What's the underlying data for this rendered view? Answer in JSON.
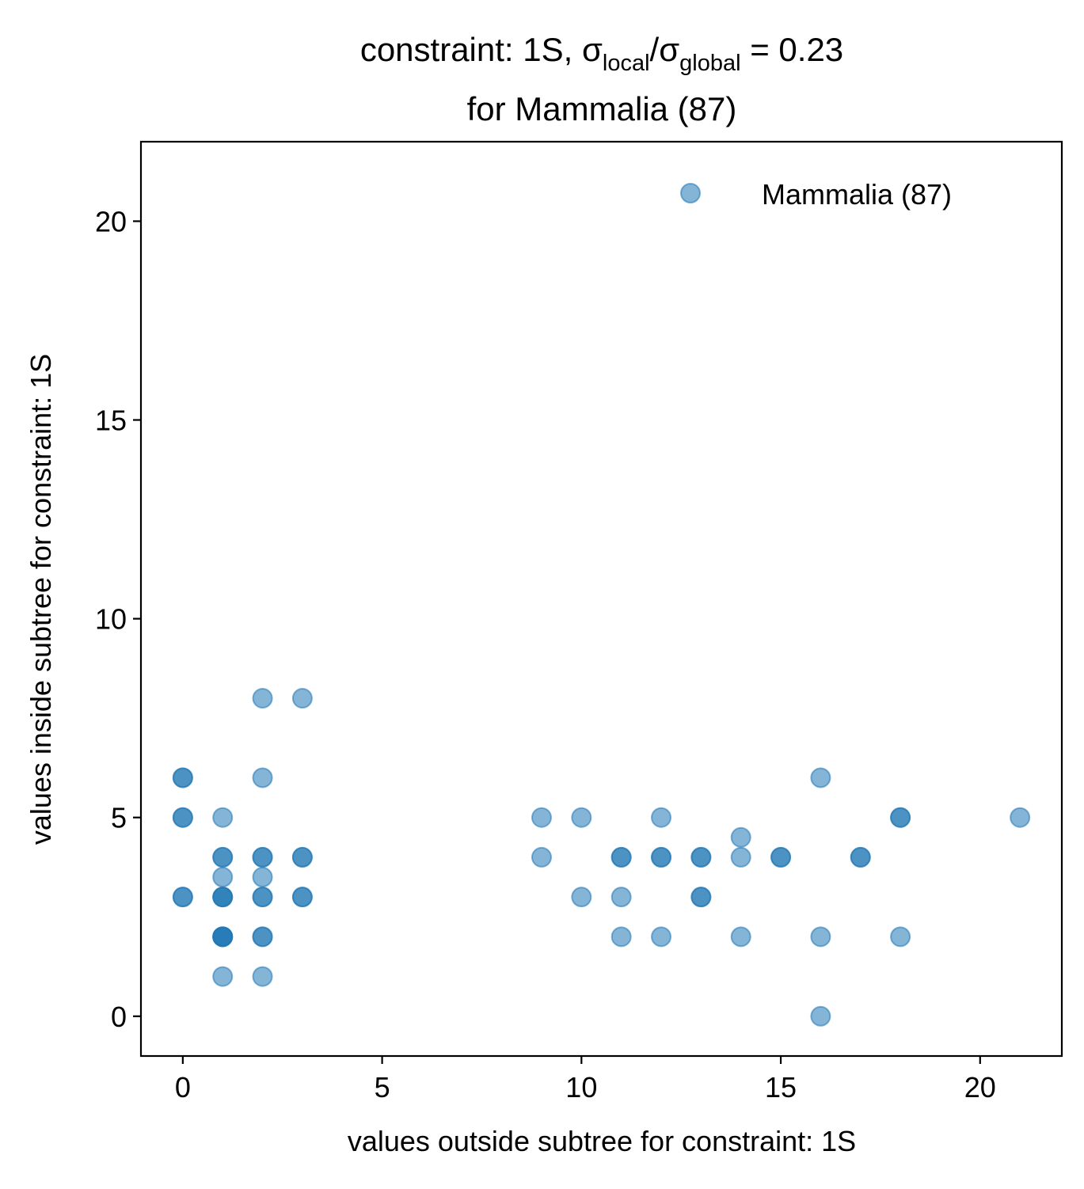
{
  "chart_data": {
    "type": "scatter",
    "title": {
      "line1_prefix": "constraint: 1S, σ",
      "sub1": "local",
      "slash": "/σ",
      "sub2": "global",
      "line1_suffix": " =  0.23",
      "line2": "for Mammalia (87)"
    },
    "xlabel": "values outside subtree for constraint: 1S",
    "ylabel": "values inside subtree for constraint: 1S",
    "xlim": [
      -1.05,
      22.05
    ],
    "ylim": [
      -1.0,
      22.0
    ],
    "xticks": [
      0,
      5,
      10,
      15,
      20
    ],
    "yticks": [
      0,
      5,
      10,
      15,
      20
    ],
    "grid": false,
    "legend_position": "top-right",
    "marker_color": "#1f77b4",
    "marker_alpha": 0.55,
    "series": [
      {
        "name": "Mammalia (87)",
        "points": [
          [
            0,
            6
          ],
          [
            0,
            6
          ],
          [
            0,
            5
          ],
          [
            0,
            5
          ],
          [
            0,
            3
          ],
          [
            0,
            3
          ],
          [
            1,
            5
          ],
          [
            1,
            4
          ],
          [
            1,
            4
          ],
          [
            1,
            3.5
          ],
          [
            1,
            3
          ],
          [
            1,
            3
          ],
          [
            1,
            3
          ],
          [
            1,
            2
          ],
          [
            1,
            2
          ],
          [
            1,
            2
          ],
          [
            1,
            2
          ],
          [
            1,
            1
          ],
          [
            2,
            8
          ],
          [
            2,
            6
          ],
          [
            2,
            4
          ],
          [
            2,
            4
          ],
          [
            2,
            3.5
          ],
          [
            2,
            3
          ],
          [
            2,
            3
          ],
          [
            2,
            2
          ],
          [
            2,
            2
          ],
          [
            2,
            1
          ],
          [
            3,
            8
          ],
          [
            3,
            4
          ],
          [
            3,
            4
          ],
          [
            3,
            3
          ],
          [
            3,
            3
          ],
          [
            9,
            5
          ],
          [
            9,
            4
          ],
          [
            10,
            5
          ],
          [
            10,
            3
          ],
          [
            11,
            4
          ],
          [
            11,
            4
          ],
          [
            11,
            3
          ],
          [
            11,
            2
          ],
          [
            12,
            5
          ],
          [
            12,
            4
          ],
          [
            12,
            4
          ],
          [
            12,
            2
          ],
          [
            13,
            4
          ],
          [
            13,
            4
          ],
          [
            13,
            3
          ],
          [
            13,
            3
          ],
          [
            14,
            4.5
          ],
          [
            14,
            4
          ],
          [
            14,
            2
          ],
          [
            15,
            4
          ],
          [
            15,
            4
          ],
          [
            16,
            6
          ],
          [
            16,
            2
          ],
          [
            16,
            0
          ],
          [
            17,
            4
          ],
          [
            17,
            4
          ],
          [
            18,
            5
          ],
          [
            18,
            5
          ],
          [
            18,
            2
          ],
          [
            21,
            5
          ]
        ]
      }
    ]
  }
}
